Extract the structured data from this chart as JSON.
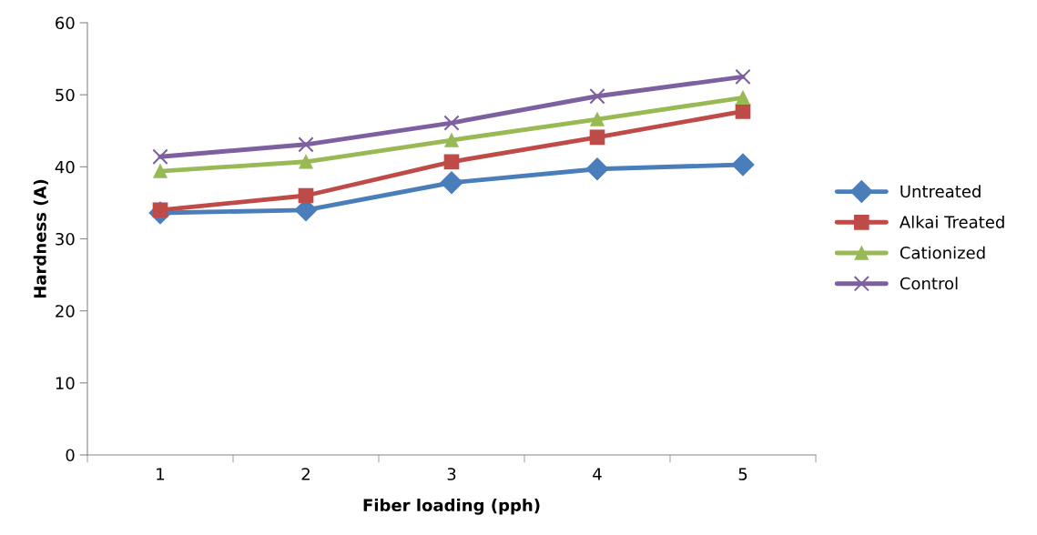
{
  "chart_data": {
    "type": "line",
    "xlabel": "Fiber loading (pph)",
    "ylabel": "Hardness (A)",
    "categories": [
      "1",
      "2",
      "3",
      "4",
      "5"
    ],
    "ylim": [
      0,
      60
    ],
    "yticks": [
      0,
      10,
      20,
      30,
      40,
      50,
      60
    ],
    "grid": false,
    "legend": "right",
    "series": [
      {
        "name": "Untreated",
        "color": "#4a7ebb",
        "marker": "diamond",
        "values": [
          33.6,
          34.0,
          37.8,
          39.7,
          40.3
        ]
      },
      {
        "name": "Alkai Treated",
        "color": "#be4b48",
        "marker": "square",
        "values": [
          34.0,
          36.0,
          40.7,
          44.1,
          47.7
        ]
      },
      {
        "name": "Cationized",
        "color": "#98b954",
        "marker": "triangle",
        "values": [
          39.4,
          40.7,
          43.7,
          46.6,
          49.6
        ]
      },
      {
        "name": "Control",
        "color": "#7d60a0",
        "marker": "cross",
        "values": [
          41.4,
          43.1,
          46.1,
          49.8,
          52.5
        ]
      }
    ]
  }
}
